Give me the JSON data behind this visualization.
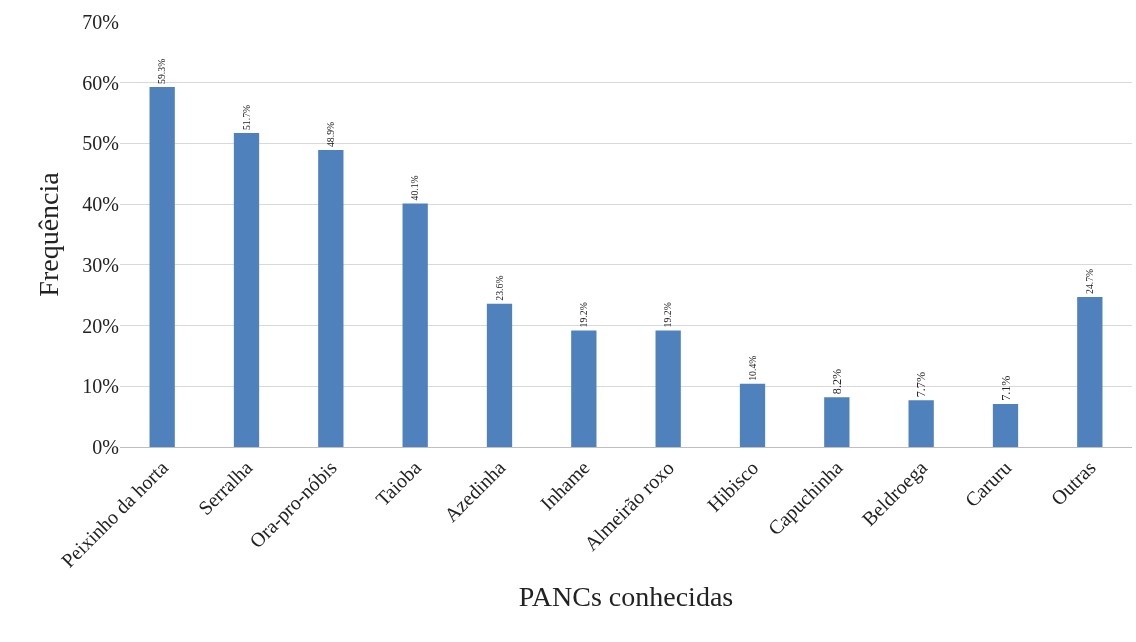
{
  "chart_data": {
    "type": "bar",
    "xlabel": "PANCs conhecidas",
    "ylabel": "Frequência",
    "categories": [
      "Peixinho da horta",
      "Serralha",
      "Ora-pro-nóbis",
      "Taioba",
      "Azedinha",
      "Inhame",
      "Almeirão roxo",
      "Hibisco",
      "Capuchinha",
      "Beldroega",
      "Caruru",
      "Outras"
    ],
    "values": [
      59.3,
      51.7,
      48.9,
      40.1,
      23.6,
      19.2,
      19.2,
      10.4,
      8.2,
      7.7,
      7.1,
      24.7
    ],
    "value_labels": [
      "59.3%",
      "51.7%",
      "48.9%",
      "40.1%",
      "23.6%",
      "19.2%",
      "19.2%",
      "10.4%",
      "8.2%",
      "7.7%",
      "7.1%",
      "24.7%"
    ],
    "color": "#4f81bd",
    "ylim": [
      0,
      70
    ],
    "yticks": [
      {
        "value": 0,
        "label": "0%"
      },
      {
        "value": 10,
        "label": "10%"
      },
      {
        "value": 20,
        "label": "20%"
      },
      {
        "value": 30,
        "label": "30%"
      },
      {
        "value": 40,
        "label": "40%"
      },
      {
        "value": 50,
        "label": "50%"
      },
      {
        "value": 60,
        "label": "60%"
      },
      {
        "value": 70,
        "label": "70%"
      }
    ],
    "grid": "y",
    "legend": false
  }
}
